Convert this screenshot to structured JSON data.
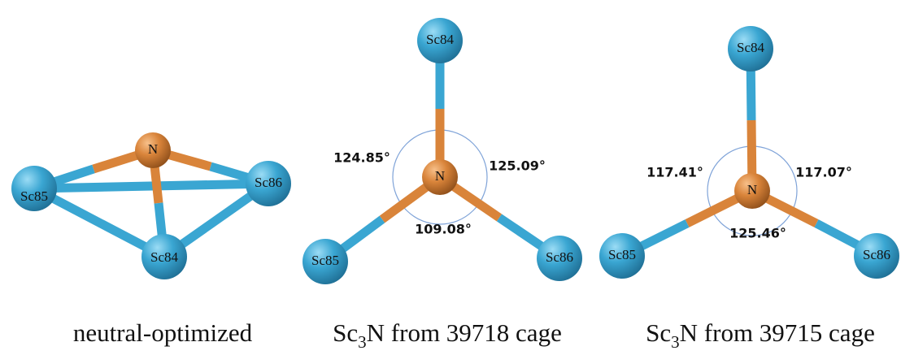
{
  "panels": [
    {
      "atoms": {
        "n": "N",
        "sc84": "Sc84",
        "sc85": "Sc85",
        "sc86": "Sc86"
      },
      "caption": {
        "text": "neutral-optimized"
      }
    },
    {
      "atoms": {
        "n": "N",
        "sc84": "Sc84",
        "sc85": "Sc85",
        "sc86": "Sc86"
      },
      "angles": {
        "left": "124.85°",
        "right": "125.09°",
        "bottom": "109.08°"
      },
      "caption": {
        "pre": "Sc",
        "sub": "3",
        "post": "N from 39718 cage"
      }
    },
    {
      "atoms": {
        "n": "N",
        "sc84": "Sc84",
        "sc85": "Sc85",
        "sc86": "Sc86"
      },
      "angles": {
        "left": "117.41°",
        "right": "117.07°",
        "bottom": "125.46°"
      },
      "caption": {
        "pre": "Sc",
        "sub": "3",
        "post": "N from 39715 cage"
      }
    }
  ]
}
